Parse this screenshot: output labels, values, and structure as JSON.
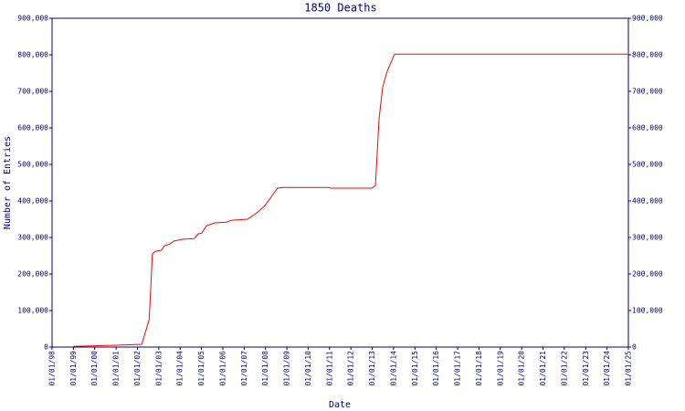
{
  "chart_data": {
    "type": "line",
    "title": "1850 Deaths",
    "xlabel": "Date",
    "ylabel": "Number of Entries",
    "series": [
      {
        "color": "#ff0000",
        "x": [
          1999.0,
          2001.0,
          2002.2,
          2002.55,
          2002.7,
          2002.83,
          2003.13,
          2003.26,
          2003.52,
          2003.7,
          2004.1,
          2004.67,
          2004.85,
          2005.02,
          2005.23,
          2005.62,
          2006.17,
          2006.39,
          2007.16,
          2007.54,
          2007.97,
          2008.31,
          2008.57,
          2008.83,
          2010.97,
          2011.05,
          2012.98,
          2013.15,
          2013.32,
          2013.49,
          2013.7,
          2014.05,
          2025.0
        ],
        "values": [
          2000,
          5000,
          7500,
          75000,
          255000,
          262000,
          265000,
          277000,
          282000,
          290000,
          295000,
          297000,
          310000,
          312000,
          332000,
          340000,
          342000,
          347000,
          350000,
          365000,
          387000,
          415000,
          435000,
          437000,
          437000,
          435000,
          435000,
          442000,
          625000,
          712000,
          755000,
          802000,
          802000
        ]
      }
    ],
    "xlim": [
      1998,
      2025
    ],
    "xticks": [
      {
        "value": 1998,
        "label": "01/01/98"
      },
      {
        "value": 1999,
        "label": "01/01/99"
      },
      {
        "value": 2000,
        "label": "01/01/00"
      },
      {
        "value": 2001,
        "label": "01/01/01"
      },
      {
        "value": 2002,
        "label": "01/01/02"
      },
      {
        "value": 2003,
        "label": "01/01/03"
      },
      {
        "value": 2004,
        "label": "01/01/04"
      },
      {
        "value": 2005,
        "label": "01/01/05"
      },
      {
        "value": 2006,
        "label": "01/01/06"
      },
      {
        "value": 2007,
        "label": "01/01/07"
      },
      {
        "value": 2008,
        "label": "01/01/08"
      },
      {
        "value": 2009,
        "label": "01/01/09"
      },
      {
        "value": 2010,
        "label": "01/01/10"
      },
      {
        "value": 2011,
        "label": "01/01/11"
      },
      {
        "value": 2012,
        "label": "01/01/12"
      },
      {
        "value": 2013,
        "label": "01/01/13"
      },
      {
        "value": 2014,
        "label": "01/01/14"
      },
      {
        "value": 2015,
        "label": "01/01/15"
      },
      {
        "value": 2016,
        "label": "01/01/16"
      },
      {
        "value": 2017,
        "label": "01/01/17"
      },
      {
        "value": 2018,
        "label": "01/01/18"
      },
      {
        "value": 2019,
        "label": "01/01/19"
      },
      {
        "value": 2020,
        "label": "01/01/20"
      },
      {
        "value": 2021,
        "label": "01/01/21"
      },
      {
        "value": 2022,
        "label": "01/01/22"
      },
      {
        "value": 2023,
        "label": "01/01/23"
      },
      {
        "value": 2024,
        "label": "01/01/24"
      },
      {
        "value": 2025,
        "label": "01/01/25"
      }
    ],
    "ylim": [
      0,
      900000
    ],
    "yticks": [
      0,
      {
        "value": 100000,
        "label": "100,000"
      },
      {
        "value": 200000,
        "label": "200,000"
      },
      {
        "value": 300000,
        "label": "300,000"
      },
      {
        "value": 400000,
        "label": "400,000"
      },
      {
        "value": 500000,
        "label": "500,000"
      },
      {
        "value": 600000,
        "label": "600,000"
      },
      {
        "value": 700000,
        "label": "700,000"
      },
      {
        "value": 800000,
        "label": "800,000"
      },
      {
        "value": 900000,
        "label": "900,000"
      }
    ]
  }
}
